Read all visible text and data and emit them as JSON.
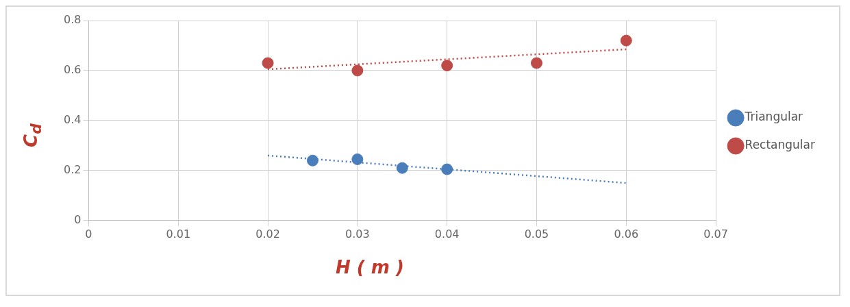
{
  "chart_data": {
    "type": "scatter",
    "xlabel": "H ( m )",
    "ylabel": "C$_{d}$",
    "xlim": [
      0,
      0.07
    ],
    "xticks": [
      0,
      0.01,
      0.02,
      0.03,
      0.04,
      0.05,
      0.06,
      0.07
    ],
    "ylim": [
      0,
      0.8
    ],
    "yticks": [
      0,
      0.2,
      0.4,
      0.6,
      0.8
    ],
    "grid": true,
    "legend": "right",
    "marker": "circle",
    "series": [
      {
        "name": "Triangular",
        "color": "#4a7ebb",
        "x": [
          0.025,
          0.03,
          0.035,
          0.04
        ],
        "values": [
          0.24,
          0.245,
          0.21,
          0.205
        ]
      },
      {
        "name": "Rectangular",
        "color": "#be4b48",
        "x": [
          0.02,
          0.03,
          0.04,
          0.05,
          0.06
        ],
        "values": [
          0.63,
          0.6,
          0.62,
          0.63,
          0.72
        ]
      },
      {
        "type": "line",
        "color": "#4a7ebb",
        "line_style": "dotted",
        "marker": "none",
        "x": [
          0.02,
          0.06
        ],
        "values": [
          0.26,
          0.15
        ]
      },
      {
        "type": "line",
        "color": "#be4b48",
        "line_style": "dotted",
        "marker": "none",
        "x": [
          0.02,
          0.06
        ],
        "values": [
          0.605,
          0.685
        ]
      }
    ]
  }
}
